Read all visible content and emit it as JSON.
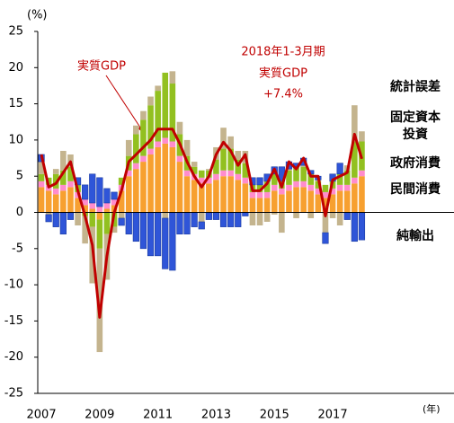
{
  "chart_data": {
    "type": "bar",
    "y_unit": "(%)",
    "x_unit": "(年)",
    "categories": [
      "2007",
      null,
      null,
      null,
      null,
      null,
      null,
      null,
      "2009",
      null,
      null,
      null,
      null,
      null,
      null,
      null,
      "2011",
      null,
      null,
      null,
      null,
      null,
      null,
      null,
      "2013",
      null,
      null,
      null,
      null,
      null,
      null,
      null,
      "2015",
      null,
      null,
      null,
      null,
      null,
      null,
      null,
      "2017",
      null,
      null,
      null,
      null
    ],
    "series": [
      {
        "name": "民間消費",
        "color": "#f7a030",
        "text_color": "#f07a10",
        "values": [
          3.5,
          3,
          2.5,
          3,
          3.5,
          2,
          1,
          0.5,
          -1,
          0.5,
          1,
          3,
          5,
          6,
          7,
          8,
          9,
          9.5,
          9,
          7,
          5,
          4.5,
          4,
          4,
          4.5,
          5,
          5,
          4.5,
          4,
          2,
          2,
          2,
          3,
          2.5,
          3,
          3.5,
          3.5,
          3,
          2.5,
          2,
          2.5,
          3,
          3,
          4,
          5
        ]
      },
      {
        "name": "政府消費",
        "color": "#ff8ccc",
        "text_color": "#e020d0",
        "values": [
          0.8,
          0.8,
          0.8,
          0.8,
          0.8,
          0.8,
          0.8,
          0.8,
          0.8,
          0.8,
          0.8,
          0.8,
          0.8,
          0.8,
          0.8,
          0.8,
          0.8,
          0.8,
          0.8,
          0.8,
          0.8,
          0.8,
          0.8,
          0.8,
          0.8,
          0.8,
          0.8,
          0.8,
          0.8,
          0.8,
          0.8,
          0.8,
          0.8,
          0.8,
          0.8,
          0.8,
          0.8,
          0.8,
          0.8,
          0.8,
          0.8,
          0.8,
          0.8,
          0.8,
          0.8
        ]
      },
      {
        "name": "固定資本\n投資",
        "color": "#92c020",
        "text_color": "#30a020",
        "values": [
          1,
          1,
          2,
          2,
          2,
          1,
          -0.5,
          -2,
          -4,
          -3,
          -2,
          1,
          2,
          4,
          5,
          6,
          7,
          9,
          8,
          3,
          2,
          1,
          1,
          1,
          2,
          3,
          3,
          2,
          2,
          1,
          1,
          1.5,
          1.5,
          1,
          2,
          2,
          2,
          1.5,
          1,
          1,
          1,
          1.5,
          2,
          5,
          4
        ]
      },
      {
        "name": "統計誤差",
        "color": "#c4b48e",
        "text_color": "#a89b6e",
        "values": [
          1.7,
          -0.3,
          0.7,
          2.7,
          1.7,
          -1.8,
          -3.8,
          -7.8,
          -14.3,
          -6.3,
          -0.8,
          -0.8,
          2.2,
          1.2,
          1.2,
          1.2,
          0.7,
          -0.8,
          1.7,
          1.7,
          2.2,
          0.7,
          -1.3,
          0.2,
          1.7,
          2.9,
          1.7,
          1.2,
          1.7,
          -1.8,
          -1.8,
          -1.3,
          -0.3,
          -2.8,
          0.2,
          -0.8,
          0.2,
          -0.8,
          0.2,
          -2.8,
          -0.8,
          -1.8,
          0.7,
          5,
          1.4
        ]
      },
      {
        "name": "純輸出",
        "color": "#2f55d8",
        "text_color": "#2050e0",
        "values": [
          1,
          -1,
          -2,
          -3,
          -1,
          1,
          2,
          4,
          4,
          2,
          1,
          -1,
          -3,
          -4,
          -5,
          -6,
          -6,
          -7,
          -8,
          -3,
          -3,
          -2,
          -1,
          -1,
          -1,
          -2,
          -2,
          -2,
          -0.5,
          1,
          1,
          1,
          1,
          2,
          1,
          0.5,
          1,
          0.5,
          0.5,
          -1.5,
          1,
          1.5,
          -1,
          -4,
          -3.8
        ]
      }
    ],
    "line": {
      "name": "実質GDP",
      "color": "#c00000",
      "values": [
        8,
        3.5,
        4,
        5.5,
        7,
        3,
        -0.5,
        -4.5,
        -14.5,
        -6,
        0,
        3,
        7,
        8,
        9,
        10,
        11.5,
        11.5,
        11.5,
        9.5,
        7,
        5,
        3.5,
        5,
        8,
        9.7,
        8.5,
        6.5,
        8,
        3,
        3,
        4,
        6,
        3.5,
        7,
        6,
        7.5,
        5,
        5,
        -0.5,
        4.5,
        5,
        5.5,
        10.8,
        7.4
      ]
    },
    "annotation": [
      "2018年1-3月期",
      "実質GDP",
      "+7.4%"
    ],
    "ylim": [
      -25,
      25
    ],
    "yticks": [
      -25,
      -20,
      -15,
      -10,
      -5,
      0,
      5,
      10,
      15,
      20,
      25
    ]
  }
}
